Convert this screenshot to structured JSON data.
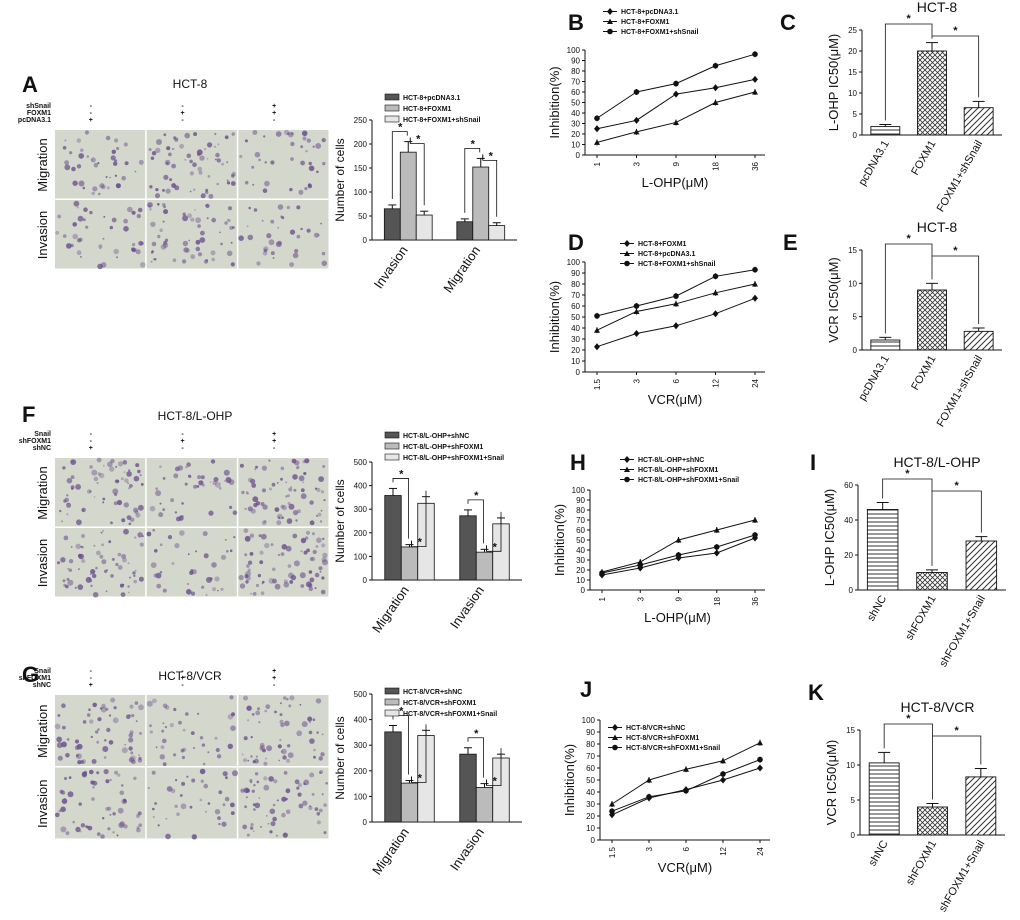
{
  "figure": {
    "panels": [
      {
        "id": "A",
        "kind": "micro",
        "title": "HCT-8",
        "treatment_rows": [
          {
            "label": "shSnail",
            "signs": [
              "-",
              "-",
              "+"
            ]
          },
          {
            "label": "FOXM1",
            "signs": [
              "-",
              "+",
              "+"
            ]
          },
          {
            "label": "pcDNA3.1",
            "signs": [
              "+",
              "-",
              "-"
            ]
          }
        ],
        "row_labels": [
          "Migration",
          "Invasion"
        ],
        "stain_density": [
          [
            0.45,
            0.75,
            0.4
          ],
          [
            0.45,
            0.7,
            0.35
          ]
        ]
      },
      {
        "id": "F",
        "kind": "micro",
        "title": "HCT-8/L-OHP",
        "treatment_rows": [
          {
            "label": "Snail",
            "signs": [
              "-",
              "-",
              "+"
            ]
          },
          {
            "label": "shFOXM1",
            "signs": [
              "-",
              "+",
              "+"
            ]
          },
          {
            "label": "shNC",
            "signs": [
              "+",
              "-",
              "-"
            ]
          }
        ],
        "row_labels": [
          "Migration",
          "Invasion"
        ],
        "stain_density": [
          [
            0.85,
            0.45,
            0.85
          ],
          [
            0.8,
            0.4,
            0.9
          ]
        ]
      },
      {
        "id": "G",
        "kind": "micro",
        "title": "HCT-8/VCR",
        "treatment_rows": [
          {
            "label": "Snail",
            "signs": [
              "-",
              "-",
              "+"
            ]
          },
          {
            "label": "shFOXM1",
            "signs": [
              "-",
              "+",
              "+"
            ]
          },
          {
            "label": "shNC",
            "signs": [
              "+",
              "-",
              "-"
            ]
          }
        ],
        "row_labels": [
          "Migration",
          "Invasion"
        ],
        "stain_density": [
          [
            0.75,
            0.4,
            0.7
          ],
          [
            0.7,
            0.4,
            0.75
          ]
        ]
      }
    ]
  },
  "chart_data": [
    {
      "id": "A-bar",
      "type": "bar",
      "title": "",
      "xlabel": "",
      "ylabel": "Number of cells",
      "categories": [
        "Invasion",
        "Migration"
      ],
      "ylim": [
        0,
        250
      ],
      "yticks": [
        0,
        50,
        100,
        150,
        200,
        250
      ],
      "series": [
        {
          "name": "HCT-8+pcDNA3.1",
          "values": [
            65,
            38
          ],
          "errors": [
            8,
            6
          ],
          "fill": "#555555"
        },
        {
          "name": "HCT-8+FOXM1",
          "values": [
            183,
            152
          ],
          "errors": [
            22,
            18
          ],
          "fill": "#bbbbbb"
        },
        {
          "name": "HCT-8+FOXM1+shSnail",
          "values": [
            52,
            30
          ],
          "errors": [
            8,
            6
          ],
          "fill": "#e6e6e6"
        }
      ],
      "annotations": [
        "*",
        "*",
        "*",
        "*"
      ]
    },
    {
      "id": "B",
      "type": "line",
      "title": "",
      "xlabel": "L-OHP(μM)",
      "ylabel": "Inhibition(%)",
      "x": [
        "1",
        "3",
        "9",
        "18",
        "36"
      ],
      "ylim": [
        0,
        100
      ],
      "yticks": [
        0,
        10,
        20,
        30,
        40,
        50,
        60,
        70,
        80,
        90,
        100
      ],
      "series": [
        {
          "name": "HCT-8+pcDNA3.1",
          "values": [
            25,
            33,
            58,
            64,
            72
          ]
        },
        {
          "name": "HCT-8+FOXM1",
          "values": [
            12,
            22,
            31,
            50,
            60
          ]
        },
        {
          "name": "HCT-8+FOXM1+shSnail",
          "values": [
            35,
            60,
            68,
            85,
            96
          ]
        }
      ]
    },
    {
      "id": "C",
      "type": "bar",
      "title": "HCT-8",
      "xlabel": "",
      "ylabel": "L-OHP IC50(μM)",
      "categories": [
        "pcDNA3.1",
        "FOXM1",
        "FOXM1+shSnail"
      ],
      "values": [
        2,
        20,
        6.5
      ],
      "errors": [
        0.5,
        2,
        1.5
      ],
      "ylim": [
        0,
        25
      ],
      "yticks": [
        0,
        5,
        10,
        15,
        20,
        25
      ],
      "annotations": [
        "*",
        "*"
      ]
    },
    {
      "id": "D",
      "type": "line",
      "title": "",
      "xlabel": "VCR(μM)",
      "ylabel": "Inhibition(%)",
      "x": [
        "1.5",
        "3",
        "6",
        "12",
        "24"
      ],
      "ylim": [
        0,
        100
      ],
      "yticks": [
        0,
        10,
        20,
        30,
        40,
        50,
        60,
        70,
        80,
        90,
        100
      ],
      "series": [
        {
          "name": "HCT-8+FOXM1",
          "values": [
            23,
            35,
            42,
            53,
            67
          ]
        },
        {
          "name": "HCT-8+pcDNA3.1",
          "values": [
            38,
            55,
            62,
            72,
            80
          ]
        },
        {
          "name": "HCT-8+FOXM1+shSnail",
          "values": [
            51,
            60,
            69,
            87,
            93
          ]
        }
      ]
    },
    {
      "id": "E",
      "type": "bar",
      "title": "HCT-8",
      "xlabel": "",
      "ylabel": "VCR IC50(μM)",
      "categories": [
        "pcDNA3.1",
        "FOXM1",
        "FOXM1+shSnail"
      ],
      "values": [
        1.5,
        9,
        2.8
      ],
      "errors": [
        0.4,
        1,
        0.5
      ],
      "ylim": [
        0,
        15
      ],
      "yticks": [
        0,
        5,
        10,
        15
      ],
      "annotations": [
        "*",
        "*"
      ]
    },
    {
      "id": "F-bar",
      "type": "bar",
      "title": "",
      "xlabel": "",
      "ylabel": "Number of cells",
      "categories": [
        "Migration",
        "Invasion"
      ],
      "ylim": [
        0,
        500
      ],
      "yticks": [
        0,
        100,
        200,
        300,
        400,
        500
      ],
      "series": [
        {
          "name": "HCT-8/L-OHP+shNC",
          "values": [
            358,
            272
          ],
          "errors": [
            30,
            25
          ],
          "fill": "#555555"
        },
        {
          "name": "HCT-8/L-OHP+shFOXM1",
          "values": [
            140,
            118
          ],
          "errors": [
            10,
            12
          ],
          "fill": "#bbbbbb"
        },
        {
          "name": "HCT-8/L-OHP+shFOXM1+Snail",
          "values": [
            325,
            238
          ],
          "errors": [
            28,
            25
          ],
          "fill": "#e6e6e6"
        }
      ],
      "annotations": [
        "*",
        "*",
        "*",
        "*"
      ]
    },
    {
      "id": "H",
      "type": "line",
      "title": "",
      "xlabel": "L-OHP(μM)",
      "ylabel": "Inhibition(%)",
      "x": [
        "1",
        "3",
        "9",
        "18",
        "36"
      ],
      "ylim": [
        0,
        100
      ],
      "yticks": [
        0,
        10,
        20,
        30,
        40,
        50,
        60,
        70,
        80,
        90,
        100
      ],
      "series": [
        {
          "name": "HCT-8/L-OHP+shNC",
          "values": [
            15,
            22,
            32,
            37,
            52
          ]
        },
        {
          "name": "HCT-8/L-OHP+shFOXM1",
          "values": [
            18,
            28,
            50,
            60,
            70
          ]
        },
        {
          "name": "HCT-8/L-OHP+shFOXM1+Snail",
          "values": [
            17,
            25,
            35,
            43,
            55
          ]
        }
      ]
    },
    {
      "id": "I",
      "type": "bar",
      "title": "HCT-8/L-OHP",
      "xlabel": "",
      "ylabel": "L-OHP IC50(μM)",
      "categories": [
        "shNC",
        "shFOXM1",
        "shFOXM1+Snail"
      ],
      "values": [
        46,
        10,
        28
      ],
      "errors": [
        4,
        1.5,
        2.5
      ],
      "ylim": [
        0,
        60
      ],
      "yticks": [
        0,
        20,
        40,
        60
      ],
      "annotations": [
        "*",
        "*"
      ]
    },
    {
      "id": "G-bar",
      "type": "bar",
      "title": "",
      "xlabel": "",
      "ylabel": "Number of cells",
      "categories": [
        "Migration",
        "Invasion"
      ],
      "ylim": [
        0,
        500
      ],
      "yticks": [
        0,
        100,
        200,
        300,
        400,
        500
      ],
      "series": [
        {
          "name": "HCT-8/VCR+shNC",
          "values": [
            352,
            265
          ],
          "errors": [
            25,
            25
          ],
          "fill": "#555555"
        },
        {
          "name": "HCT-8/VCR+shFOXM1",
          "values": [
            152,
            135
          ],
          "errors": [
            10,
            15
          ],
          "fill": "#bbbbbb"
        },
        {
          "name": "HCT-8/VCR+shFOXM1+Snail",
          "values": [
            338,
            250
          ],
          "errors": [
            20,
            15
          ],
          "fill": "#e6e6e6"
        }
      ],
      "annotations": [
        "*",
        "*",
        "*",
        "*"
      ]
    },
    {
      "id": "J",
      "type": "line",
      "title": "",
      "xlabel": "VCR(μM)",
      "ylabel": "Inhibition(%)",
      "x": [
        "1.5",
        "3",
        "6",
        "12",
        "24"
      ],
      "ylim": [
        0,
        100
      ],
      "yticks": [
        0,
        10,
        20,
        30,
        40,
        50,
        60,
        70,
        80,
        90,
        100
      ],
      "series": [
        {
          "name": "HCT-8/VCR+shNC",
          "values": [
            21,
            35,
            42,
            50,
            60
          ]
        },
        {
          "name": "HCT-8/VCR+shFOXM1",
          "values": [
            30,
            50,
            59,
            66,
            81
          ]
        },
        {
          "name": "HCT-8/VCR+shFOXM1+Snail",
          "values": [
            24,
            36,
            41,
            55,
            67
          ]
        }
      ]
    },
    {
      "id": "K",
      "type": "bar",
      "title": "HCT-8/VCR",
      "xlabel": "",
      "ylabel": "VCR IC50(μM)",
      "categories": [
        "shNC",
        "shFOXM1",
        "shFOXM1+Snail"
      ],
      "values": [
        10.3,
        4,
        8.3
      ],
      "errors": [
        1.5,
        0.5,
        1.2
      ],
      "ylim": [
        0,
        15
      ],
      "yticks": [
        0,
        5,
        10,
        15
      ],
      "annotations": [
        "*",
        "*"
      ]
    }
  ],
  "colors": {
    "stain_purple": "#6a4c8c",
    "stain_background": "#d4d8cc",
    "axis": "#111111"
  }
}
